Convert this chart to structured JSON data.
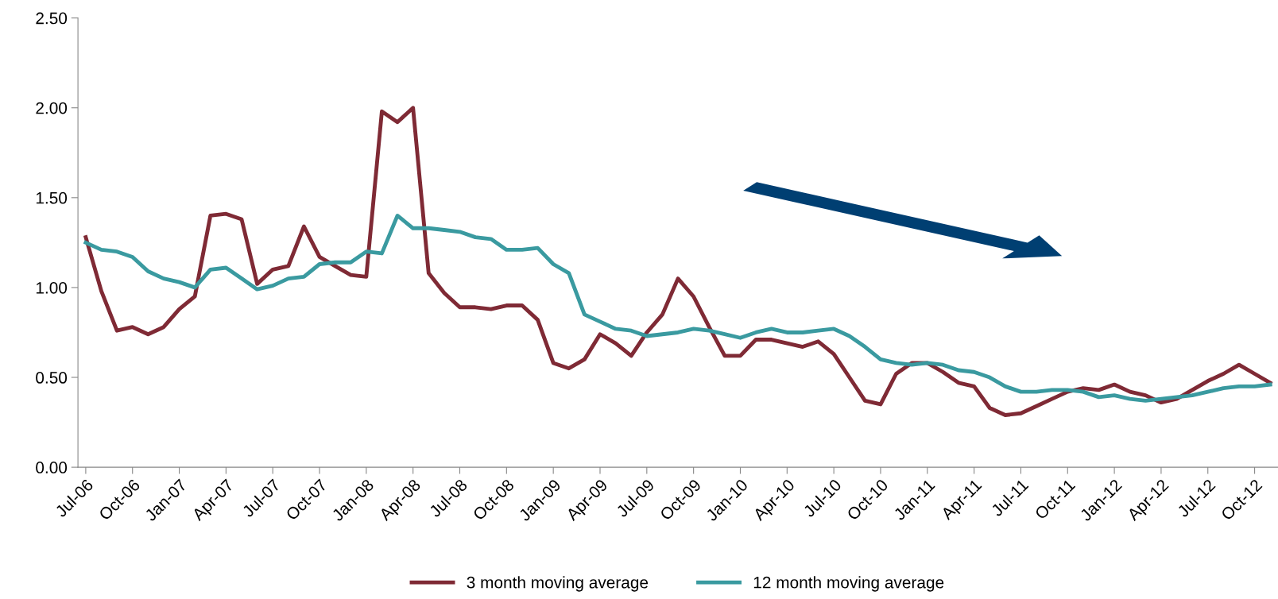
{
  "chart_data": {
    "type": "line",
    "categories": [
      "Jul-06",
      null,
      null,
      "Oct-06",
      null,
      null,
      "Jan-07",
      null,
      null,
      "Apr-07",
      null,
      null,
      "Jul-07",
      null,
      null,
      "Oct-07",
      null,
      null,
      "Jan-08",
      null,
      null,
      "Apr-08",
      null,
      null,
      "Jul-08",
      null,
      null,
      "Oct-08",
      null,
      null,
      "Jan-09",
      null,
      null,
      "Apr-09",
      null,
      null,
      "Jul-09",
      null,
      null,
      "Oct-09",
      null,
      null,
      "Jan-10",
      null,
      null,
      "Apr-10",
      null,
      null,
      "Jul-10",
      null,
      null,
      "Oct-10",
      null,
      null,
      "Jan-11",
      null,
      null,
      "Apr-11",
      null,
      null,
      "Jul-11",
      null,
      null,
      "Oct-11",
      null,
      null,
      "Jan-12",
      null,
      null,
      "Apr-12",
      null,
      null,
      "Jul-12",
      null,
      null,
      "Oct-12",
      null
    ],
    "series": [
      {
        "name": "3 month moving average",
        "color": "#7f2a35",
        "values": [
          1.28,
          0.98,
          0.76,
          0.78,
          0.74,
          0.78,
          0.88,
          0.95,
          1.4,
          1.41,
          1.38,
          1.02,
          1.1,
          1.12,
          1.34,
          1.17,
          1.12,
          1.07,
          1.06,
          1.98,
          1.92,
          2.0,
          1.08,
          0.97,
          0.89,
          0.89,
          0.88,
          0.9,
          0.9,
          0.82,
          0.58,
          0.55,
          0.6,
          0.74,
          0.69,
          0.62,
          0.75,
          0.85,
          1.05,
          0.95,
          0.78,
          0.62,
          0.62,
          0.71,
          0.71,
          0.69,
          0.67,
          0.7,
          0.63,
          0.5,
          0.37,
          0.35,
          0.52,
          0.58,
          0.58,
          0.53,
          0.47,
          0.45,
          0.33,
          0.29,
          0.3,
          0.34,
          0.38,
          0.42,
          0.44,
          0.43,
          0.46,
          0.42,
          0.4,
          0.36,
          0.38,
          0.43,
          0.48,
          0.52,
          0.57,
          0.52,
          0.47
        ]
      },
      {
        "name": "12 month moving average",
        "color": "#3a9aa0",
        "values": [
          1.25,
          1.21,
          1.2,
          1.17,
          1.09,
          1.05,
          1.03,
          1.0,
          1.1,
          1.11,
          1.05,
          0.99,
          1.01,
          1.05,
          1.06,
          1.13,
          1.14,
          1.14,
          1.2,
          1.19,
          1.4,
          1.33,
          1.33,
          1.32,
          1.31,
          1.28,
          1.27,
          1.21,
          1.21,
          1.22,
          1.13,
          1.08,
          0.85,
          0.81,
          0.77,
          0.76,
          0.73,
          0.74,
          0.75,
          0.77,
          0.76,
          0.74,
          0.72,
          0.75,
          0.77,
          0.75,
          0.75,
          0.76,
          0.77,
          0.73,
          0.67,
          0.6,
          0.58,
          0.57,
          0.58,
          0.57,
          0.54,
          0.53,
          0.5,
          0.45,
          0.42,
          0.42,
          0.43,
          0.43,
          0.42,
          0.39,
          0.4,
          0.38,
          0.37,
          0.38,
          0.39,
          0.4,
          0.42,
          0.44,
          0.45,
          0.45,
          0.46
        ]
      }
    ],
    "ylim": [
      0,
      2.5
    ],
    "yticks": [
      {
        "value": 0,
        "label": "0.00"
      },
      {
        "value": 0.5,
        "label": "0.50"
      },
      {
        "value": 1,
        "label": "1.00"
      },
      {
        "value": 1.5,
        "label": "1.50"
      },
      {
        "value": 2,
        "label": "2.00"
      },
      {
        "value": 2.5,
        "label": "2.50"
      }
    ],
    "legend": "bottom",
    "marker": "none",
    "line_style": "solid"
  }
}
